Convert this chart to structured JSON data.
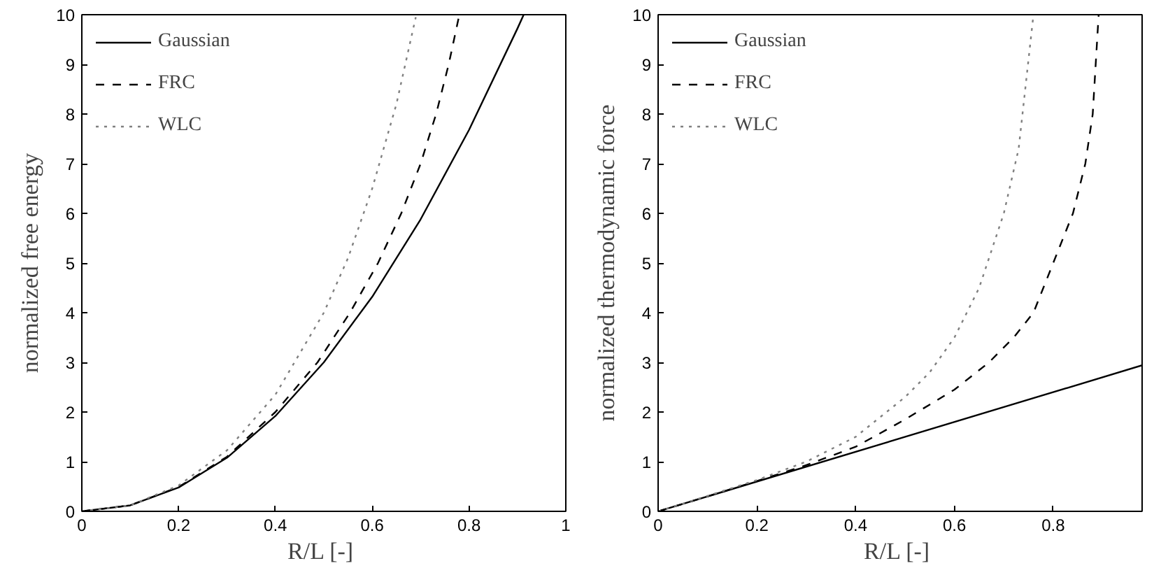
{
  "chart_data": [
    {
      "type": "line",
      "xlabel": "R/L  [-]",
      "ylabel": "normalized free energy",
      "xlim": [
        0,
        1
      ],
      "ylim": [
        0,
        10
      ],
      "xticks": [
        0,
        0.2,
        0.4,
        0.6,
        0.8,
        1
      ],
      "yticks": [
        0,
        1,
        2,
        3,
        4,
        5,
        6,
        7,
        8,
        9,
        10
      ],
      "grid": false,
      "legend": "top left",
      "series": [
        {
          "name": "Gaussian",
          "color": "#000000",
          "line_style": "solid",
          "x": [
            0,
            0.1,
            0.2,
            0.3,
            0.4,
            0.5,
            0.6,
            0.7,
            0.8,
            0.9,
            0.913
          ],
          "values": [
            0,
            0.12,
            0.48,
            1.08,
            1.92,
            3.0,
            4.32,
            5.88,
            7.68,
            9.72,
            10
          ]
        },
        {
          "name": "FRC",
          "color": "#000000",
          "line_style": "dashed",
          "x": [
            0,
            0.1,
            0.2,
            0.3,
            0.4,
            0.487,
            0.554,
            0.612,
            0.66,
            0.7,
            0.732,
            0.758,
            0.78
          ],
          "values": [
            0,
            0.12,
            0.49,
            1.1,
            2.0,
            3,
            4,
            5,
            6,
            7,
            8,
            9,
            10
          ]
        },
        {
          "name": "WLC",
          "color": "#808080",
          "line_style": "dotted",
          "x": [
            0,
            0.1,
            0.2,
            0.3,
            0.4,
            0.5,
            0.55,
            0.6,
            0.65,
            0.69
          ],
          "values": [
            0,
            0.12,
            0.52,
            1.23,
            2.35,
            4.0,
            5.1,
            6.5,
            8.2,
            9.95
          ]
        }
      ]
    },
    {
      "type": "line",
      "xlabel": "R/L  [-]",
      "ylabel": "normalized thermodynamic force",
      "xlim": [
        0,
        0.98
      ],
      "ylim": [
        0,
        10
      ],
      "xticks": [
        0,
        0.2,
        0.4,
        0.6,
        0.8
      ],
      "yticks": [
        0,
        1,
        2,
        3,
        4,
        5,
        6,
        7,
        8,
        9,
        10
      ],
      "grid": false,
      "legend": "top left",
      "series": [
        {
          "name": "Gaussian",
          "color": "#000000",
          "line_style": "solid",
          "x": [
            0,
            0.98
          ],
          "values": [
            0,
            2.94
          ]
        },
        {
          "name": "FRC",
          "color": "#000000",
          "line_style": "dashed",
          "x": [
            0,
            0.1,
            0.2,
            0.3,
            0.4,
            0.5,
            0.6,
            0.67,
            0.72,
            0.76,
            0.8,
            0.84,
            0.865,
            0.88,
            0.886,
            0.892
          ],
          "values": [
            0,
            0.3,
            0.61,
            0.93,
            1.3,
            1.85,
            2.45,
            3.0,
            3.5,
            4.0,
            5.0,
            6.0,
            7.0,
            8.0,
            9.0,
            10
          ]
        },
        {
          "name": "WLC",
          "color": "#808080",
          "line_style": "dotted",
          "x": [
            0,
            0.1,
            0.2,
            0.3,
            0.4,
            0.5,
            0.55,
            0.6,
            0.65,
            0.7,
            0.73,
            0.76
          ],
          "values": [
            0,
            0.31,
            0.63,
            1.0,
            1.5,
            2.3,
            2.8,
            3.5,
            4.5,
            6.0,
            7.3,
            10
          ]
        }
      ]
    }
  ]
}
